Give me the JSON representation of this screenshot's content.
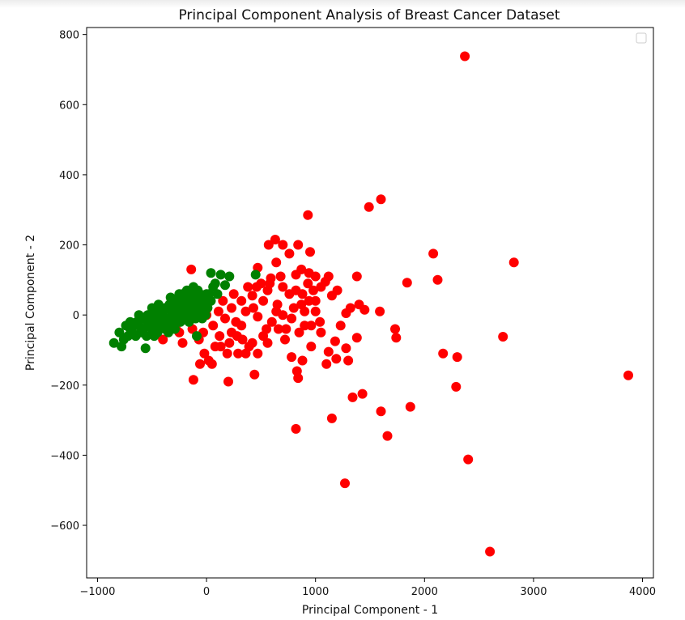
{
  "chart_data": {
    "type": "scatter",
    "title": "Principal Component Analysis of Breast Cancer Dataset",
    "xlabel": "Principal Component - 1",
    "ylabel": "Principal Component - 2",
    "xlim": [
      -1100,
      4100
    ],
    "ylim": [
      -750,
      820
    ],
    "xticks": [
      -1000,
      0,
      1000,
      2000,
      3000,
      4000
    ],
    "xtick_labels": [
      "−1000",
      "0",
      "1000",
      "2000",
      "3000",
      "4000"
    ],
    "yticks": [
      -600,
      -400,
      -200,
      0,
      200,
      400,
      600,
      800
    ],
    "ytick_labels": [
      "−600",
      "−400",
      "−200",
      "0",
      "200",
      "400",
      "600",
      "800"
    ],
    "grid": false,
    "legend": {
      "placement": "top-right",
      "entries": []
    },
    "series": [
      {
        "color": "#ff0000",
        "points": [
          [
            2370,
            738
          ],
          [
            1600,
            330
          ],
          [
            1490,
            308
          ],
          [
            930,
            285
          ],
          [
            2820,
            150
          ],
          [
            2080,
            175
          ],
          [
            2120,
            100
          ],
          [
            1840,
            92
          ],
          [
            3870,
            -172
          ],
          [
            2720,
            -62
          ],
          [
            2170,
            -110
          ],
          [
            2300,
            -120
          ],
          [
            2290,
            -205
          ],
          [
            1870,
            -262
          ],
          [
            1600,
            -275
          ],
          [
            1660,
            -345
          ],
          [
            1430,
            -225
          ],
          [
            1340,
            -235
          ],
          [
            1150,
            -295
          ],
          [
            820,
            -325
          ],
          [
            2400,
            -412
          ],
          [
            1270,
            -480
          ],
          [
            2600,
            -675
          ],
          [
            1730,
            -40
          ],
          [
            1740,
            -65
          ],
          [
            1590,
            10
          ],
          [
            1380,
            110
          ],
          [
            1400,
            30
          ],
          [
            1320,
            20
          ],
          [
            1280,
            5
          ],
          [
            1450,
            15
          ],
          [
            1380,
            -65
          ],
          [
            1280,
            -95
          ],
          [
            1300,
            -130
          ],
          [
            1190,
            -125
          ],
          [
            1100,
            -140
          ],
          [
            1120,
            -105
          ],
          [
            1180,
            -75
          ],
          [
            1230,
            -30
          ],
          [
            1050,
            -50
          ],
          [
            1150,
            55
          ],
          [
            1200,
            70
          ],
          [
            1090,
            95
          ],
          [
            1000,
            110
          ],
          [
            1050,
            80
          ],
          [
            1120,
            110
          ],
          [
            870,
            130
          ],
          [
            940,
            120
          ],
          [
            820,
            115
          ],
          [
            700,
            200
          ],
          [
            760,
            175
          ],
          [
            630,
            215
          ],
          [
            570,
            200
          ],
          [
            840,
            200
          ],
          [
            950,
            180
          ],
          [
            470,
            135
          ],
          [
            640,
            150
          ],
          [
            590,
            105
          ],
          [
            500,
            90
          ],
          [
            560,
            70
          ],
          [
            420,
            55
          ],
          [
            430,
            20
          ],
          [
            470,
            -5
          ],
          [
            360,
            10
          ],
          [
            320,
            -30
          ],
          [
            280,
            -60
          ],
          [
            210,
            -80
          ],
          [
            270,
            -20
          ],
          [
            230,
            20
          ],
          [
            150,
            40
          ],
          [
            170,
            -10
          ],
          [
            120,
            -60
          ],
          [
            80,
            -90
          ],
          [
            50,
            -140
          ],
          [
            -20,
            -110
          ],
          [
            -60,
            -140
          ],
          [
            -70,
            -70
          ],
          [
            -130,
            -40
          ],
          [
            -170,
            0
          ],
          [
            -100,
            30
          ],
          [
            -120,
            -185
          ],
          [
            200,
            -190
          ],
          [
            440,
            -170
          ],
          [
            830,
            -160
          ],
          [
            840,
            -180
          ],
          [
            880,
            -130
          ],
          [
            960,
            -90
          ],
          [
            900,
            -30
          ],
          [
            850,
            -50
          ],
          [
            780,
            -10
          ],
          [
            700,
            0
          ],
          [
            650,
            30
          ],
          [
            600,
            -20
          ],
          [
            720,
            -70
          ],
          [
            660,
            -40
          ],
          [
            550,
            -40
          ],
          [
            520,
            -60
          ],
          [
            390,
            -90
          ],
          [
            360,
            -110
          ],
          [
            290,
            -110
          ],
          [
            190,
            -110
          ],
          [
            130,
            -90
          ],
          [
            20,
            -130
          ],
          [
            -30,
            -50
          ],
          [
            0,
            0
          ],
          [
            250,
            60
          ],
          [
            320,
            40
          ],
          [
            380,
            80
          ],
          [
            460,
            80
          ],
          [
            520,
            40
          ],
          [
            580,
            90
          ],
          [
            700,
            80
          ],
          [
            760,
            60
          ],
          [
            820,
            70
          ],
          [
            880,
            60
          ],
          [
            930,
            90
          ],
          [
            980,
            70
          ],
          [
            940,
            40
          ],
          [
            900,
            10
          ],
          [
            1000,
            10
          ],
          [
            960,
            -30
          ],
          [
            1040,
            -20
          ],
          [
            780,
            -120
          ],
          [
            730,
            -40
          ],
          [
            640,
            10
          ],
          [
            560,
            -80
          ],
          [
            470,
            -110
          ],
          [
            420,
            -80
          ],
          [
            330,
            -70
          ],
          [
            230,
            -50
          ],
          [
            110,
            10
          ],
          [
            60,
            -30
          ],
          [
            -10,
            10
          ],
          [
            -140,
            130
          ],
          [
            -220,
            -80
          ],
          [
            -400,
            -70
          ],
          [
            -330,
            -40
          ],
          [
            -280,
            -40
          ],
          [
            -250,
            -50
          ],
          [
            680,
            110
          ],
          [
            800,
            20
          ],
          [
            870,
            30
          ],
          [
            1000,
            40
          ]
        ]
      },
      {
        "color": "#008000",
        "points": [
          [
            -850,
            -80
          ],
          [
            -780,
            -90
          ],
          [
            -760,
            -70
          ],
          [
            -800,
            -50
          ],
          [
            -720,
            -60
          ],
          [
            -700,
            -40
          ],
          [
            -680,
            -50
          ],
          [
            -650,
            -60
          ],
          [
            -620,
            -30
          ],
          [
            -600,
            -50
          ],
          [
            -580,
            -40
          ],
          [
            -560,
            -95
          ],
          [
            -540,
            -20
          ],
          [
            -520,
            -30
          ],
          [
            -500,
            -10
          ],
          [
            -480,
            -20
          ],
          [
            -460,
            0
          ],
          [
            -440,
            -40
          ],
          [
            -420,
            10
          ],
          [
            -400,
            -20
          ],
          [
            -380,
            20
          ],
          [
            -360,
            -30
          ],
          [
            -340,
            30
          ],
          [
            -320,
            10
          ],
          [
            -300,
            40
          ],
          [
            -280,
            0
          ],
          [
            -260,
            50
          ],
          [
            -240,
            20
          ],
          [
            -220,
            60
          ],
          [
            -200,
            30
          ],
          [
            -180,
            70
          ],
          [
            -160,
            40
          ],
          [
            -140,
            60
          ],
          [
            -120,
            80
          ],
          [
            -100,
            50
          ],
          [
            -80,
            70
          ],
          [
            -60,
            40
          ],
          [
            -40,
            20
          ],
          [
            -20,
            50
          ],
          [
            0,
            30
          ],
          [
            20,
            60
          ],
          [
            40,
            40
          ],
          [
            60,
            80
          ],
          [
            80,
            90
          ],
          [
            100,
            60
          ],
          [
            130,
            115
          ],
          [
            40,
            120
          ],
          [
            210,
            110
          ],
          [
            170,
            85
          ],
          [
            450,
            115
          ],
          [
            -90,
            -60
          ],
          [
            -500,
            20
          ],
          [
            -560,
            -10
          ],
          [
            -620,
            0
          ],
          [
            -480,
            10
          ],
          [
            -440,
            30
          ],
          [
            -420,
            -10
          ],
          [
            -380,
            -10
          ],
          [
            -360,
            20
          ],
          [
            -340,
            -10
          ],
          [
            -310,
            20
          ],
          [
            -290,
            -20
          ],
          [
            -270,
            30
          ],
          [
            -250,
            0
          ],
          [
            -230,
            40
          ],
          [
            -210,
            10
          ],
          [
            -190,
            20
          ],
          [
            -170,
            0
          ],
          [
            -150,
            30
          ],
          [
            -130,
            10
          ],
          [
            -110,
            20
          ],
          [
            -90,
            0
          ],
          [
            -70,
            20
          ],
          [
            -50,
            0
          ],
          [
            -30,
            10
          ],
          [
            -10,
            0
          ],
          [
            10,
            20
          ],
          [
            -600,
            -10
          ],
          [
            -640,
            -20
          ],
          [
            -660,
            -30
          ],
          [
            -700,
            -20
          ],
          [
            -740,
            -30
          ],
          [
            -540,
            0
          ],
          [
            -460,
            -30
          ],
          [
            -400,
            0
          ],
          [
            -330,
            50
          ],
          [
            -250,
            60
          ],
          [
            -180,
            50
          ],
          [
            -120,
            40
          ],
          [
            -60,
            60
          ],
          [
            0,
            60
          ],
          [
            -550,
            -60
          ],
          [
            -500,
            -40
          ],
          [
            -450,
            -50
          ],
          [
            -380,
            -40
          ],
          [
            -300,
            -30
          ],
          [
            -240,
            -20
          ],
          [
            -200,
            -10
          ],
          [
            -160,
            -20
          ],
          [
            -100,
            -10
          ],
          [
            -40,
            -10
          ],
          [
            -480,
            -60
          ],
          [
            -420,
            -30
          ],
          [
            -350,
            -50
          ],
          [
            -290,
            -40
          ]
        ]
      }
    ]
  }
}
